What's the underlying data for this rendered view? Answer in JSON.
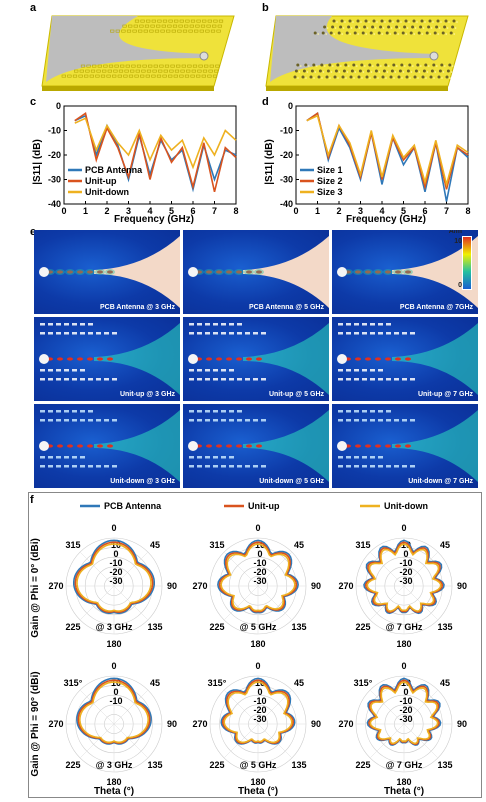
{
  "panels": {
    "a": "a",
    "b": "b",
    "c": "c",
    "d": "d",
    "e": "e",
    "f": "f"
  },
  "colors": {
    "blue": "#2f78b8",
    "red": "#d9531e",
    "yellow": "#eeb120",
    "board": "#efe23a",
    "gray": "#bdbdbd"
  },
  "chart_data": [
    {
      "type": "line",
      "panel": "c",
      "xlabel": "Frequency (GHz)",
      "ylabel": "|S11| (dB)",
      "xlim": [
        0,
        8
      ],
      "ylim": [
        -40,
        0
      ],
      "xticks": [
        "0",
        "1",
        "2",
        "3",
        "4",
        "5",
        "6",
        "7",
        "8"
      ],
      "yticks": [
        "0",
        "-10",
        "-20",
        "-30",
        "-40"
      ],
      "legend_position": "bottom-left",
      "x": [
        0.5,
        1,
        1.5,
        2,
        2.5,
        3,
        3.5,
        4,
        4.5,
        5,
        5.5,
        6,
        6.5,
        7,
        7.5,
        8
      ],
      "series": [
        {
          "name": "PCB Antenna",
          "values": [
            -6,
            -4,
            -20,
            -8,
            -16,
            -30,
            -12,
            -28,
            -14,
            -22,
            -18,
            -34,
            -16,
            -30,
            -18,
            -20
          ]
        },
        {
          "name": "Unit-up",
          "values": [
            -6,
            -3,
            -22,
            -9,
            -17,
            -29,
            -11,
            -30,
            -13,
            -23,
            -17,
            -33,
            -15,
            -35,
            -17,
            -21
          ]
        },
        {
          "name": "Unit-down",
          "values": [
            -7,
            -5,
            -18,
            -8,
            -15,
            -20,
            -10,
            -22,
            -12,
            -18,
            -14,
            -25,
            -13,
            -20,
            -10,
            -14
          ]
        }
      ]
    },
    {
      "type": "line",
      "panel": "d",
      "xlabel": "Frequency (GHz)",
      "ylabel": "|S11| (dB)",
      "xlim": [
        0,
        8
      ],
      "ylim": [
        -40,
        0
      ],
      "xticks": [
        "0",
        "1",
        "2",
        "3",
        "4",
        "5",
        "6",
        "7",
        "8"
      ],
      "yticks": [
        "0",
        "-10",
        "-20",
        "-30",
        "-40"
      ],
      "legend_position": "bottom-left",
      "x": [
        0.5,
        1,
        1.5,
        2,
        2.5,
        3,
        3.5,
        4,
        4.5,
        5,
        5.5,
        6,
        6.5,
        7,
        7.5,
        8
      ],
      "series": [
        {
          "name": "Size 1",
          "values": [
            -6,
            -3,
            -22,
            -9,
            -17,
            -30,
            -11,
            -32,
            -13,
            -24,
            -17,
            -35,
            -15,
            -39,
            -17,
            -21
          ]
        },
        {
          "name": "Size 2",
          "values": [
            -6,
            -3,
            -21,
            -8,
            -16,
            -29,
            -11,
            -30,
            -13,
            -22,
            -17,
            -33,
            -15,
            -34,
            -17,
            -20
          ]
        },
        {
          "name": "Size 3",
          "values": [
            -6,
            -4,
            -20,
            -8,
            -15,
            -28,
            -10,
            -29,
            -12,
            -21,
            -16,
            -31,
            -14,
            -32,
            -16,
            -19
          ]
        }
      ]
    },
    {
      "type": "polar",
      "panel": "f",
      "legend": [
        "PCB Antenna",
        "Unit-up",
        "Unit-down"
      ],
      "row_labels": [
        "Gain @ Phi = 0° (dBi)",
        "Gain @ Phi = 90° (dBi)"
      ],
      "theta_label": "Theta (°)",
      "angle_labels": [
        "0",
        "45",
        "90",
        "135",
        "180",
        "225",
        "270",
        "315"
      ],
      "angle_labels_row2": [
        "0",
        "45",
        "90",
        "135",
        "180",
        "225",
        "270",
        "315°"
      ],
      "radial_labels": [
        "10",
        "0",
        "-10",
        "-20",
        "-30"
      ],
      "freq_labels": [
        "@ 3 GHz",
        "@ 5 GHz",
        "@ 7 GHz"
      ]
    }
  ],
  "field_maps": {
    "colorbar_unit": "A/m",
    "colorbar_max": "10",
    "colorbar_min": "0",
    "captions": [
      [
        "PCB Antenna @ 3 GHz",
        "PCB Antenna @ 5 GHz",
        "PCB Antenna @ 7GHz"
      ],
      [
        "Unit-up @ 3 GHz",
        "Unit-up @ 5 GHz",
        "Unit-up @ 7 GHz"
      ],
      [
        "Unit-down @ 3 GHz",
        "Unit-down @ 5 GHz",
        "Unit-down @ 7 GHz"
      ]
    ]
  }
}
